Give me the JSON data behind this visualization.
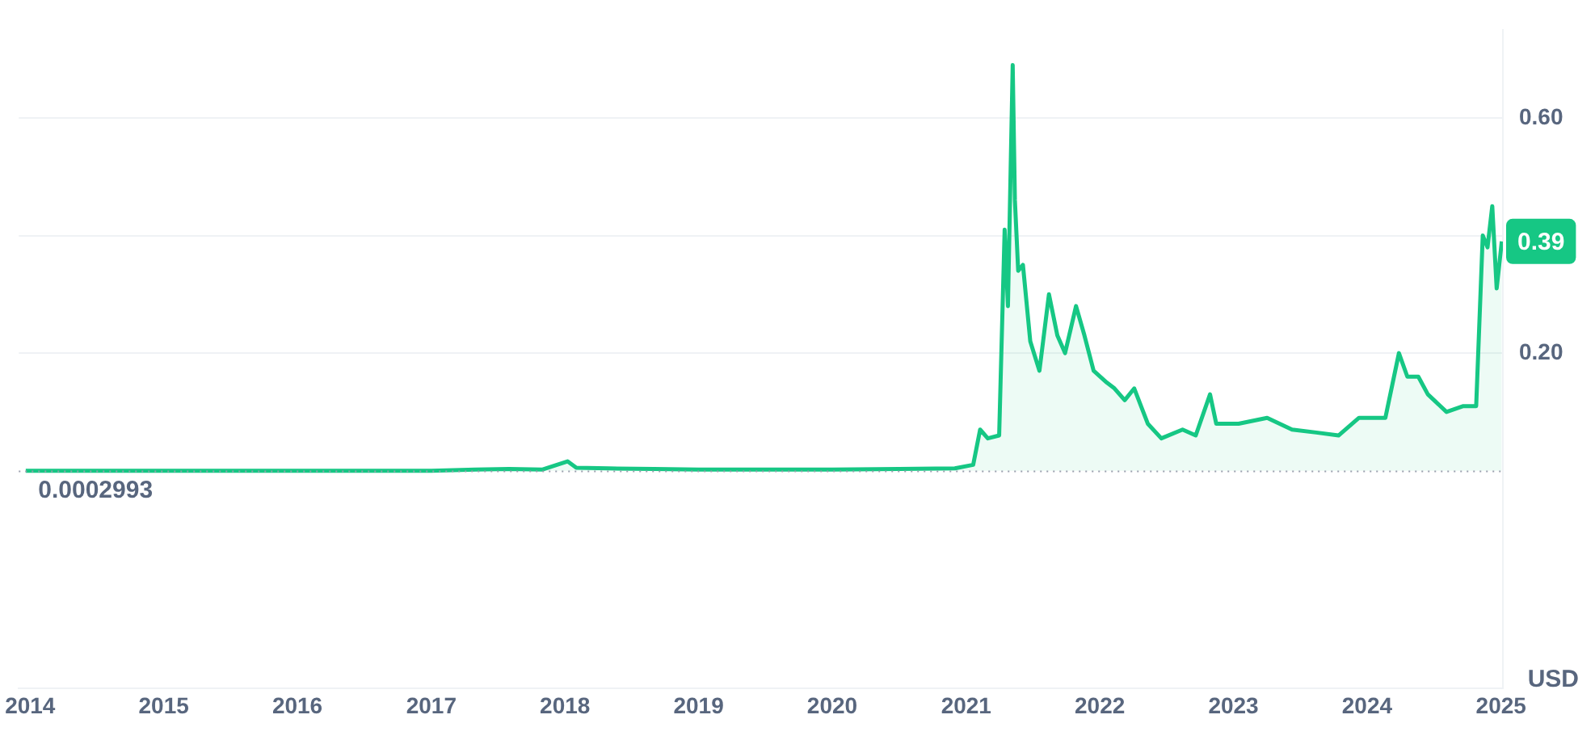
{
  "chart_data": {
    "type": "area",
    "x": [
      "2013-12-20",
      "2014-06",
      "2015-01",
      "2015-06",
      "2016-01",
      "2016-06",
      "2017-01",
      "2017-05",
      "2017-08",
      "2017-11",
      "2018-01-08",
      "2018-02",
      "2018-05",
      "2018-09",
      "2019-01",
      "2019-07",
      "2020-01",
      "2020-07",
      "2020-12",
      "2021-01-20",
      "2021-02-08",
      "2021-03",
      "2021-04-01",
      "2021-04-16",
      "2021-04-25",
      "2021-05-08",
      "2021-05-14",
      "2021-05-23",
      "2021-06-05",
      "2021-06-25",
      "2021-07-20",
      "2021-08-15",
      "2021-09-07",
      "2021-09-28",
      "2021-10-28",
      "2021-11-20",
      "2021-12-15",
      "2022-01-20",
      "2022-02-10",
      "2022-03-10",
      "2022-04-05",
      "2022-05-12",
      "2022-06-18",
      "2022-08-15",
      "2022-09-20",
      "2022-10-29",
      "2022-11-15",
      "2023-01-15",
      "2023-04-03",
      "2023-06-10",
      "2023-08-15",
      "2023-10-15",
      "2023-12-10",
      "2024-02-20",
      "2024-03-28",
      "2024-04-20",
      "2024-05-20",
      "2024-06-15",
      "2024-08-05",
      "2024-09-20",
      "2024-10-25",
      "2024-11-12",
      "2024-11-25",
      "2024-12-08",
      "2024-12-20",
      "2025-01-03"
    ],
    "series": [
      {
        "color": "#16c784",
        "values": [
          0,
          0,
          0,
          0,
          0,
          0,
          0,
          0.002,
          0.003,
          0.002,
          0.016,
          0.005,
          0.004,
          0.003,
          0.002,
          0.002,
          0.002,
          0.003,
          0.004,
          0.01,
          0.07,
          0.055,
          0.06,
          0.41,
          0.28,
          0.69,
          0.46,
          0.34,
          0.35,
          0.22,
          0.17,
          0.3,
          0.23,
          0.2,
          0.28,
          0.23,
          0.17,
          0.15,
          0.14,
          0.12,
          0.14,
          0.08,
          0.055,
          0.07,
          0.06,
          0.13,
          0.08,
          0.08,
          0.09,
          0.07,
          0.065,
          0.06,
          0.09,
          0.09,
          0.2,
          0.16,
          0.16,
          0.13,
          0.1,
          0.11,
          0.11,
          0.4,
          0.38,
          0.45,
          0.31,
          0.39
        ]
      }
    ],
    "xlim": [
      "2013-12-01",
      "2025-01-06"
    ],
    "xticks": [
      "2014",
      "2015",
      "2016",
      "2017",
      "2018",
      "2019",
      "2020",
      "2021",
      "2022",
      "2023",
      "2024",
      "2025"
    ],
    "ylim": [
      -0.37,
      0.75
    ],
    "yticks": [
      {
        "value": 0.2,
        "label": "0.20"
      },
      {
        "value": 0.4,
        "label": null
      },
      {
        "value": 0.6,
        "label": "0.60"
      }
    ],
    "grid": "y",
    "legend": false,
    "marker": "none",
    "ref_lines": [
      {
        "axis": "y",
        "value": 0.0002993,
        "label": "0.0002993",
        "color": "#9aa0ae",
        "line_style": "dotted"
      }
    ],
    "annotations": [
      {
        "text": "0.39",
        "x": "2025-01-03",
        "y": 0.39
      },
      "USD"
    ]
  }
}
